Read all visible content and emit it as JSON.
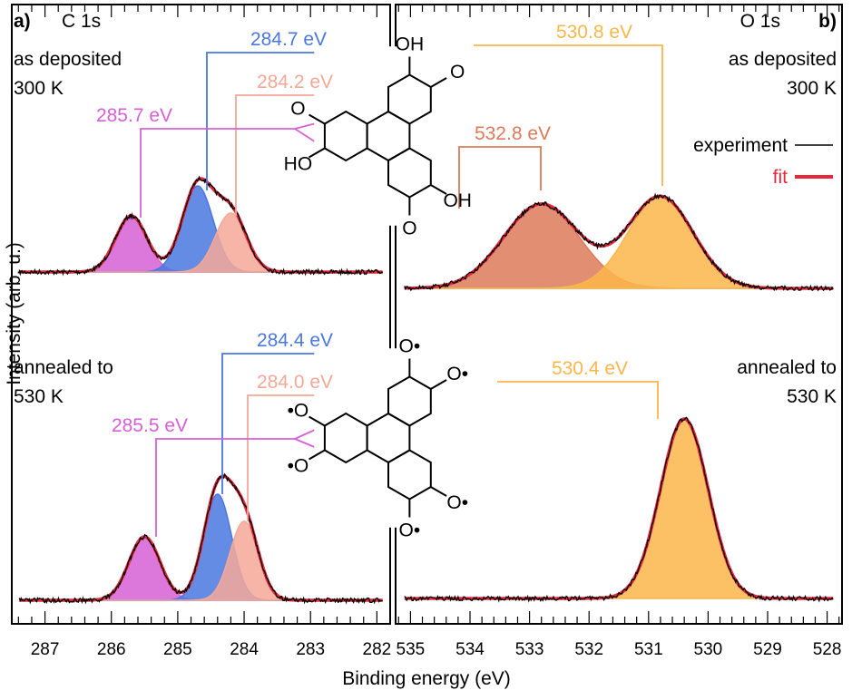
{
  "figure": {
    "xlabel": "Binding energy (eV)",
    "ylabel": "Intensity (arb. u.)",
    "legend": {
      "experiment": "experiment",
      "fit": "fit",
      "experiment_color": "#000000",
      "fit_color": "#e8283a",
      "placement": "top-right of panel b"
    }
  },
  "chart_data": [
    {
      "type": "line",
      "panel_label": "a)",
      "title": "C 1s",
      "xlim": [
        287.5,
        281.8
      ],
      "xticks": [
        287,
        286,
        285,
        284,
        283,
        282
      ],
      "x_reversed": true,
      "grid": false,
      "spectra": [
        {
          "condition": [
            "as deposited",
            "300 K"
          ],
          "peaks": [
            {
              "label": "285.7 eV",
              "center": 285.7,
              "amplitude": 62,
              "fwhm": 0.55,
              "color": "#d660d6"
            },
            {
              "label": "284.7 eV",
              "center": 284.7,
              "amplitude": 95,
              "fwhm": 0.55,
              "color": "#4a78e0"
            },
            {
              "label": "284.2 eV",
              "center": 284.2,
              "amplitude": 65,
              "fwhm": 0.55,
              "color": "#f4a898"
            }
          ]
        },
        {
          "condition": [
            "annealed to",
            "530 K"
          ],
          "peaks": [
            {
              "label": "285.5 eV",
              "center": 285.5,
              "amplitude": 70,
              "fwhm": 0.55,
              "color": "#d660d6"
            },
            {
              "label": "284.4 eV",
              "center": 284.4,
              "amplitude": 117,
              "fwhm": 0.5,
              "color": "#4a78e0"
            },
            {
              "label": "284.0 eV",
              "center": 284.0,
              "amplitude": 87,
              "fwhm": 0.5,
              "color": "#f4a898"
            }
          ]
        }
      ]
    },
    {
      "type": "line",
      "panel_label": "b)",
      "title": "O 1s",
      "xlim": [
        535.25,
        527.75
      ],
      "xticks": [
        535,
        534,
        533,
        532,
        531,
        530,
        529,
        528
      ],
      "x_reversed": true,
      "grid": false,
      "spectra": [
        {
          "condition": [
            "as deposited",
            "300 K"
          ],
          "peaks": [
            {
              "label": "532.8 eV",
              "center": 532.8,
              "amplitude": 93,
              "fwhm": 1.5,
              "color": "#dc7a5a"
            },
            {
              "label": "530.8 eV",
              "center": 530.8,
              "amplitude": 101,
              "fwhm": 1.3,
              "color": "#fbb64a"
            }
          ]
        },
        {
          "condition": [
            "annealed to",
            "530 K"
          ],
          "peaks": [
            {
              "label": "530.4 eV",
              "center": 530.4,
              "amplitude": 198,
              "fwhm": 0.95,
              "color": "#fbb64a"
            }
          ]
        }
      ]
    }
  ],
  "molecules": {
    "top": {
      "labels": [
        "OH",
        "O",
        "O",
        "HO",
        "OH",
        "O"
      ]
    },
    "bottom": {
      "labels": [
        "O•",
        "O•",
        "•O",
        "•O",
        "O•",
        "O•"
      ]
    }
  }
}
